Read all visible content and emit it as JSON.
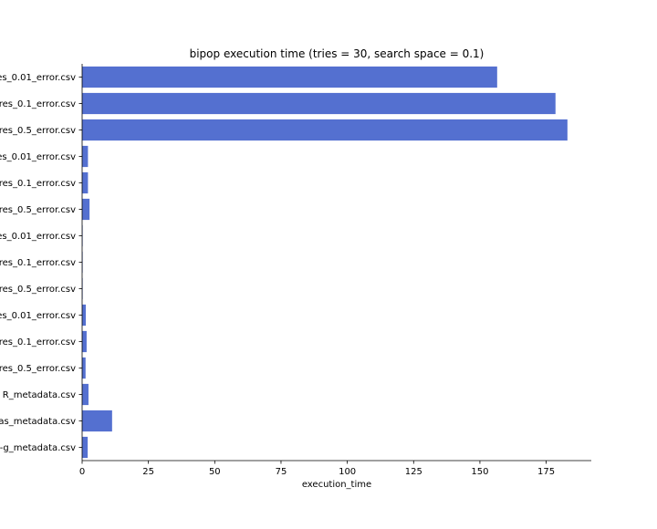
{
  "chart_data": {
    "type": "bar",
    "orientation": "horizontal",
    "title": "bipop execution time (tries = 30, search space = 0.1)",
    "xlabel": "execution_time",
    "ylabel": "",
    "xlim": [
      0,
      192
    ],
    "xticks": [
      0,
      25,
      50,
      75,
      100,
      125,
      150,
      175
    ],
    "categories": [
      "es_0.01_error.csv",
      "res_0.1_error.csv",
      "res_0.5_error.csv",
      "es_0.01_error.csv",
      "res_0.1_error.csv",
      "res_0.5_error.csv",
      "es_0.01_error.csv",
      "res_0.1_error.csv",
      "res_0.5_error.csv",
      "es_0.01_error.csv",
      "res_0.1_error.csv",
      "res_0.5_error.csv",
      "R_metadata.csv",
      "as_metadata.csv",
      "-g_metadata.csv"
    ],
    "values": [
      156.5,
      178.5,
      183,
      2.2,
      2.2,
      2.8,
      0.2,
      0.2,
      0.2,
      1.4,
      1.7,
      1.3,
      2.4,
      11.3,
      2.1
    ],
    "bar_color": "#5470d0",
    "grid": false,
    "legend": "none"
  }
}
